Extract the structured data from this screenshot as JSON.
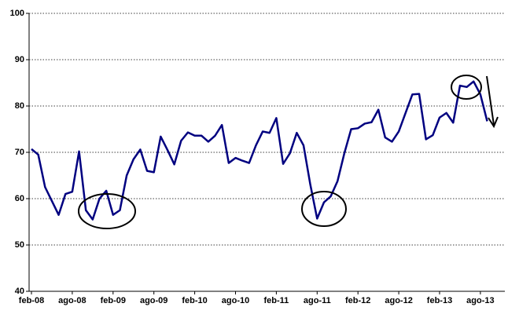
{
  "chart_data": {
    "type": "line",
    "categories": [
      "feb-08",
      null,
      null,
      null,
      null,
      null,
      "ago-08",
      null,
      null,
      null,
      null,
      null,
      "feb-09",
      null,
      null,
      null,
      null,
      null,
      "ago-09",
      null,
      null,
      null,
      null,
      null,
      "feb-10",
      null,
      null,
      null,
      null,
      null,
      "ago-10",
      null,
      null,
      null,
      null,
      null,
      "feb-11",
      null,
      null,
      null,
      null,
      null,
      "ago-11",
      null,
      null,
      null,
      null,
      null,
      "feb-12",
      null,
      null,
      null,
      null,
      null,
      "ago-12",
      null,
      null,
      null,
      null,
      null,
      "feb-13",
      null,
      null,
      null,
      null,
      null,
      "ago-13",
      null
    ],
    "values": [
      70.7,
      69.5,
      62.5,
      59.5,
      56.5,
      61,
      61.5,
      70.2,
      57.5,
      55.5,
      60,
      61.7,
      56.5,
      57.5,
      65,
      68.5,
      70.6,
      66,
      65.7,
      73.4,
      70.5,
      67.4,
      72.5,
      74.3,
      73.6,
      73.6,
      72.3,
      73.6,
      75.9,
      67.7,
      68.8,
      68.2,
      67.7,
      71.5,
      74.5,
      74.2,
      77.4,
      67.5,
      69.8,
      74.2,
      71.5,
      63,
      55.7,
      59.2,
      60.5,
      63.8,
      69.8,
      75,
      75.2,
      76.2,
      76.5,
      79.2,
      73.2,
      72.3,
      74.5,
      78.5,
      82.5,
      82.6,
      72.8,
      73.7,
      77.5,
      78.5,
      76.4,
      84.4,
      84.1,
      85.3,
      82.5,
      76.7
    ],
    "color": "#000080",
    "ylim": [
      40,
      100
    ],
    "yticks": [
      40,
      50,
      60,
      70,
      80,
      90,
      100
    ],
    "grid": true
  }
}
